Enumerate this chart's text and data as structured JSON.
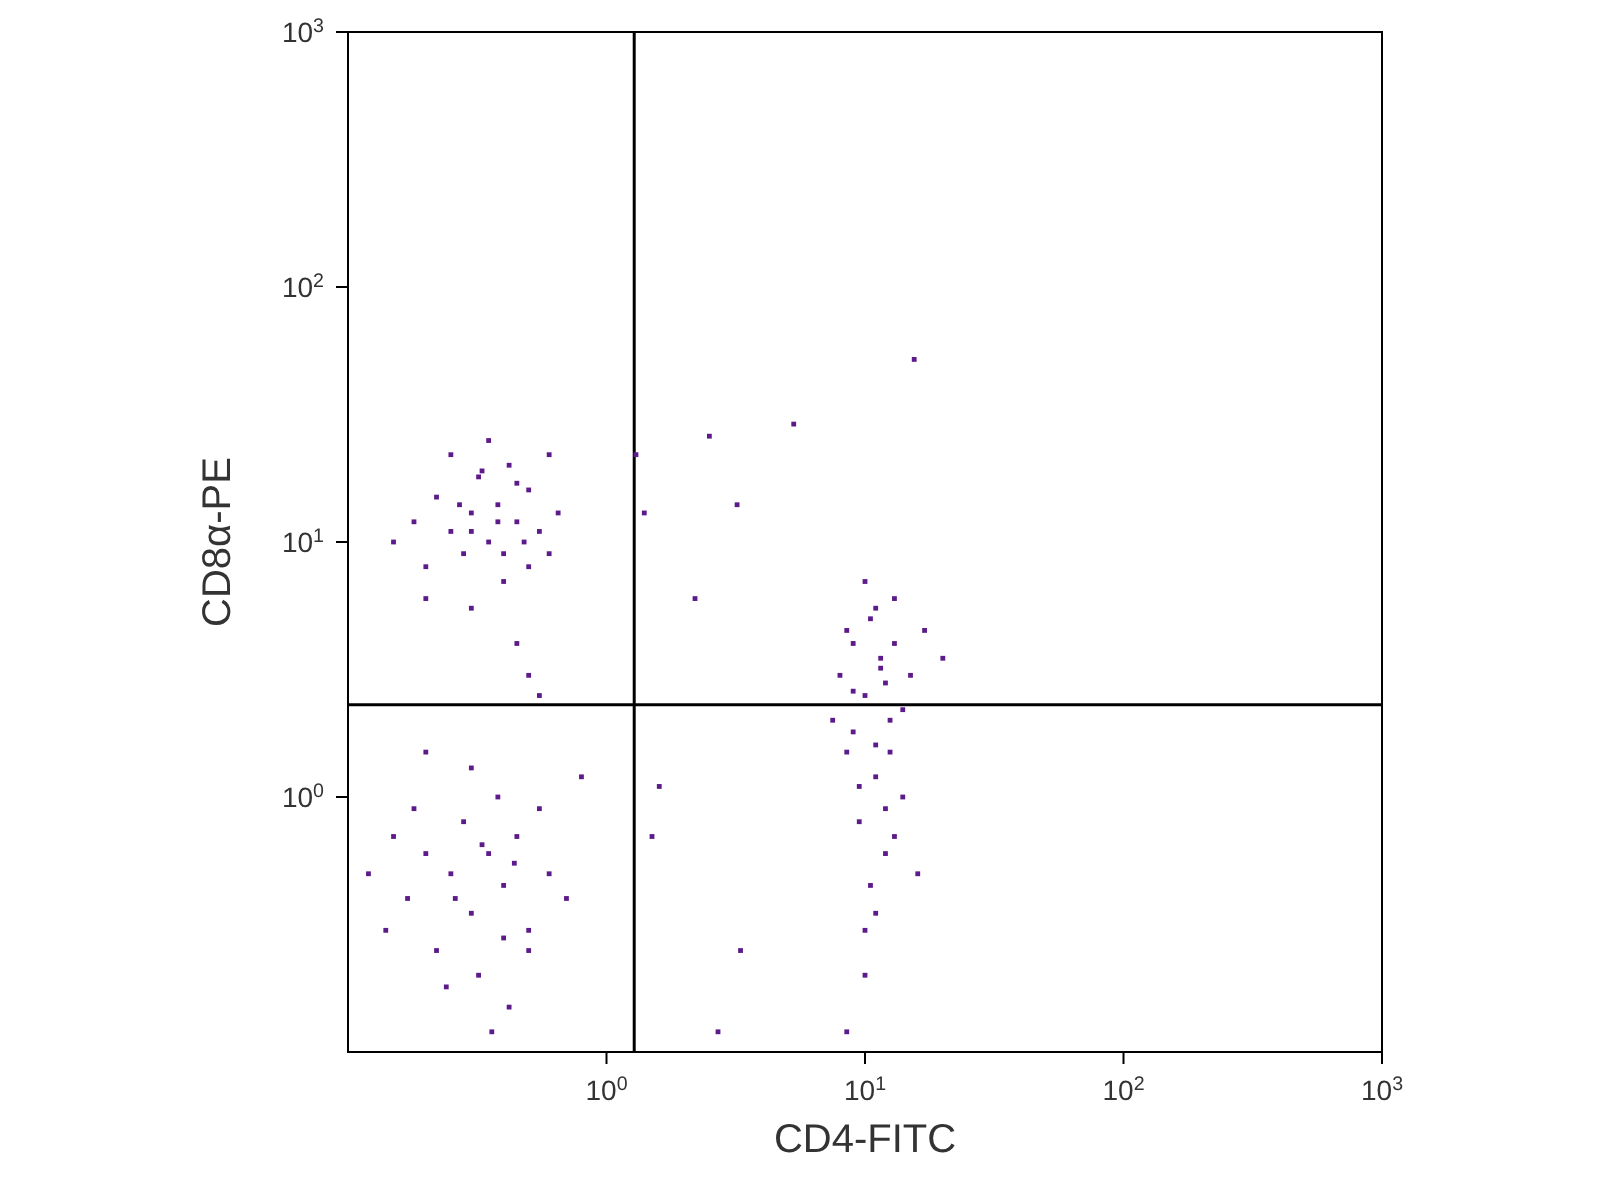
{
  "chart_data": {
    "type": "scatter",
    "xlabel": "CD4-FITC",
    "ylabel": "CD8α-PE",
    "log": "xy",
    "marker": "square",
    "xlim": [
      0.1,
      1000
    ],
    "ylim": [
      0.1,
      1000
    ],
    "xticks": [
      {
        "value": 1,
        "label": "10$^{0}$"
      },
      {
        "value": 10,
        "label": "10$^{1}$"
      },
      {
        "value": 100,
        "label": "10$^{2}$"
      },
      {
        "value": 1000,
        "label": "10$^{3}$"
      }
    ],
    "yticks": [
      {
        "value": 1,
        "label": "10$^{0}$"
      },
      {
        "value": 10,
        "label": "10$^{1}$"
      },
      {
        "value": 100,
        "label": "10$^{2}$"
      },
      {
        "value": 1000,
        "label": "10$^{3}$"
      }
    ],
    "ref_lines": [
      {
        "axis": "x",
        "value": 1.28,
        "color": "#000000"
      },
      {
        "axis": "y",
        "value": 2.3,
        "color": "#000000"
      }
    ],
    "series": [
      {
        "color": "#5c1a8a",
        "x": [
          0.15,
          0.18,
          0.2,
          0.22,
          0.25,
          0.28,
          0.3,
          0.32,
          0.35,
          0.38,
          0.4,
          0.42,
          0.45,
          0.5,
          0.55,
          0.6,
          0.65,
          0.2,
          0.25,
          0.3,
          0.35,
          0.4,
          0.45,
          0.5,
          0.3,
          0.38,
          0.27,
          0.48,
          0.33,
          0.6,
          0.5,
          0.45,
          0.55,
          0.12,
          0.14,
          0.15,
          0.17,
          0.2,
          0.22,
          0.25,
          0.28,
          0.3,
          0.32,
          0.35,
          0.38,
          0.4,
          0.42,
          0.45,
          0.5,
          0.55,
          0.6,
          0.7,
          0.8,
          0.18,
          0.24,
          0.3,
          0.36,
          0.44,
          0.5,
          0.26,
          0.2,
          0.33,
          0.4,
          7.5,
          8,
          8.5,
          9,
          9.5,
          10,
          10.5,
          11,
          11.5,
          12,
          12.5,
          13,
          14,
          15,
          16,
          9,
          10,
          11,
          12,
          13,
          8.5,
          9.5,
          10.5,
          11.5,
          12.5,
          14,
          10,
          11,
          12,
          9,
          13,
          10,
          11,
          17,
          20,
          2.5,
          5.3,
          15.5,
          3.2,
          1.3,
          1.4,
          2.2,
          2.7,
          1.6,
          1.5,
          3.3,
          8.5
        ],
        "values": [
          10,
          12,
          8,
          15,
          11,
          9,
          13,
          18,
          10,
          14,
          7,
          20,
          12,
          16,
          11,
          9,
          13,
          6,
          22,
          5.5,
          25,
          9,
          17,
          8,
          11,
          12,
          14,
          10,
          19,
          22,
          3,
          4,
          2.5,
          0.5,
          0.3,
          0.7,
          0.4,
          0.6,
          0.25,
          0.5,
          0.8,
          0.35,
          0.2,
          0.6,
          1.0,
          0.45,
          0.15,
          0.7,
          0.3,
          0.9,
          0.5,
          0.4,
          1.2,
          0.9,
          0.18,
          1.3,
          0.12,
          0.55,
          0.25,
          0.4,
          1.5,
          0.65,
          0.28,
          2,
          3,
          1.5,
          4,
          0.8,
          2.5,
          5,
          1.2,
          3.5,
          0.6,
          2,
          6,
          1,
          3,
          0.5,
          1.8,
          7,
          0.35,
          2.8,
          0.7,
          4.5,
          1.1,
          0.45,
          3.2,
          1.5,
          2.2,
          0.3,
          5.5,
          0.9,
          2.6,
          4,
          0.2,
          1.6,
          4.5,
          3.5,
          26,
          29,
          52,
          14,
          22,
          13,
          6,
          0.12,
          1.1,
          0.7,
          0.25,
          0.12
        ]
      }
    ]
  }
}
